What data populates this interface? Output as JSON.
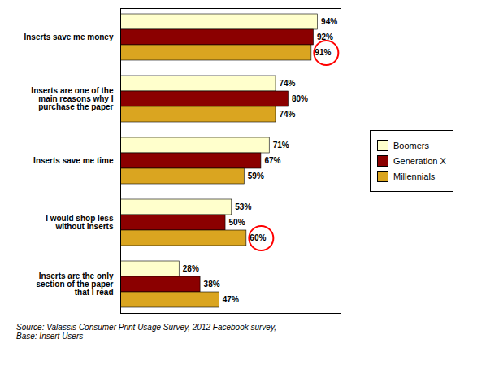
{
  "chart_data": {
    "type": "bar",
    "orientation": "horizontal",
    "categories": [
      "Inserts save me money",
      "Inserts are one of the\nmain reasons why I\npurchase the paper",
      "Inserts save me time",
      "I would shop less\nwithout inserts",
      "Inserts are the only\nsection of the paper\nthat I read"
    ],
    "series": [
      {
        "name": "Boomers",
        "color": "#FFFFCC",
        "values": [
          94,
          74,
          71,
          53,
          28
        ],
        "value_labels": [
          "94%",
          "74%",
          "71%",
          "53%",
          "28%"
        ]
      },
      {
        "name": "Generation X",
        "color": "#8B0000",
        "values": [
          92,
          80,
          67,
          50,
          38
        ],
        "value_labels": [
          "92%",
          "80%",
          "67%",
          "50%",
          "38%"
        ]
      },
      {
        "name": "Millennials",
        "color": "#DAA520",
        "values": [
          91,
          74,
          59,
          60,
          47
        ],
        "value_labels": [
          "91%",
          "74%",
          "59%",
          "60%",
          "47%"
        ]
      }
    ],
    "highlights": [
      {
        "category": "Inserts save me money",
        "series": "Millennials"
      },
      {
        "category": "I would shop less\nwithout inserts",
        "series": "Millennials"
      }
    ],
    "highlight_color": "red",
    "source": "Source: Valassis Consumer Print Usage Survey, 2012 Facebook survey,\nBase: Insert Users",
    "xlim": [
      0,
      105
    ],
    "data_labels": true,
    "tick_labels": "y",
    "legend": "right",
    "grid": false
  }
}
